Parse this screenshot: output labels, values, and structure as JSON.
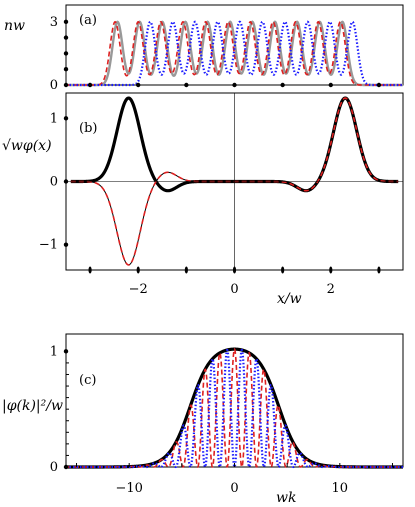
{
  "chart_data": [
    {
      "panel_label": "(a)",
      "type": "line",
      "ylabel": "nw",
      "xlim": [
        -3.5,
        3.5
      ],
      "ylim": [
        0,
        3.8
      ],
      "y_ticks": [
        0,
        3
      ],
      "y_tick_labels": [
        "0",
        "3"
      ],
      "peak_height": 3.0,
      "series": [
        {
          "style": "solid",
          "color": "#999999",
          "peaks_x": [
            -2.43,
            -1.97,
            -1.5,
            -1.02,
            -0.56,
            -0.09,
            0.37,
            0.84,
            1.3,
            1.77,
            2.24
          ]
        },
        {
          "style": "dashed",
          "color": "#dd2020",
          "peaks_x": [
            -2.48,
            -2.0,
            -1.53,
            -1.07,
            -0.6,
            -0.13,
            0.33,
            0.8,
            1.27,
            1.74,
            2.2
          ]
        },
        {
          "style": "dotted",
          "color": "#1a1aff",
          "peaks_x": [
            -1.75,
            -1.28,
            -0.82,
            -0.35,
            0.11,
            0.58,
            1.05,
            1.52,
            1.98,
            2.45
          ]
        }
      ]
    },
    {
      "panel_label": "(b)",
      "type": "line",
      "ylabel": "√wφ(x)",
      "xlabel": "x/w",
      "xlim": [
        -3.5,
        3.5
      ],
      "ylim": [
        -1.4,
        1.4
      ],
      "x_ticks": [
        -2,
        0,
        2
      ],
      "x_tick_labels": [
        "−2",
        "0",
        "2"
      ],
      "y_ticks": [
        -1,
        0,
        1
      ],
      "y_tick_labels": [
        "−1",
        "0",
        "1"
      ],
      "series": [
        {
          "style": "solid-thick",
          "color": "#000000",
          "components": [
            [
              1.32,
              -2.2,
              0.24
            ],
            [
              -0.15,
              -1.4,
              0.2
            ],
            [
              1.32,
              2.3,
              0.24
            ],
            [
              -0.15,
              1.5,
              0.2
            ]
          ]
        },
        {
          "style": "solid-outline",
          "color": "#000000",
          "components": [
            [
              -1.32,
              -2.2,
              0.24
            ],
            [
              0.15,
              -1.4,
              0.2
            ],
            [
              1.32,
              2.3,
              0.24
            ],
            [
              -0.15,
              1.5,
              0.2
            ]
          ]
        },
        {
          "style": "dashed",
          "color": "#dd2020",
          "components": [
            [
              -1.32,
              -2.2,
              0.24
            ],
            [
              0.15,
              -1.4,
              0.2
            ],
            [
              1.32,
              2.3,
              0.24
            ],
            [
              -0.15,
              1.5,
              0.2
            ]
          ]
        }
      ]
    },
    {
      "panel_label": "(c)",
      "type": "line",
      "ylabel": "|φ(k)|²/w",
      "xlabel": "wk",
      "xlim": [
        -16,
        16
      ],
      "ylim": [
        0,
        1.15
      ],
      "x_ticks": [
        -10,
        0,
        10
      ],
      "x_tick_labels": [
        "−10",
        "0",
        "10"
      ],
      "y_ticks": [
        0,
        1
      ],
      "y_tick_labels": [
        "0",
        "1"
      ],
      "envelope": {
        "plateau": 1.05,
        "half_width": 4.2,
        "edge_width": 1.0
      },
      "series": [
        {
          "style": "solid-thick",
          "color": "#000000",
          "oscillation_freq": 0
        },
        {
          "style": "dashed",
          "color": "#dd2020",
          "oscillation_freq": 4.5,
          "phase": 0.0
        },
        {
          "style": "dotted",
          "color": "#1a1aff",
          "oscillation_freq": 4.5,
          "phase": 1.5708
        }
      ]
    }
  ]
}
